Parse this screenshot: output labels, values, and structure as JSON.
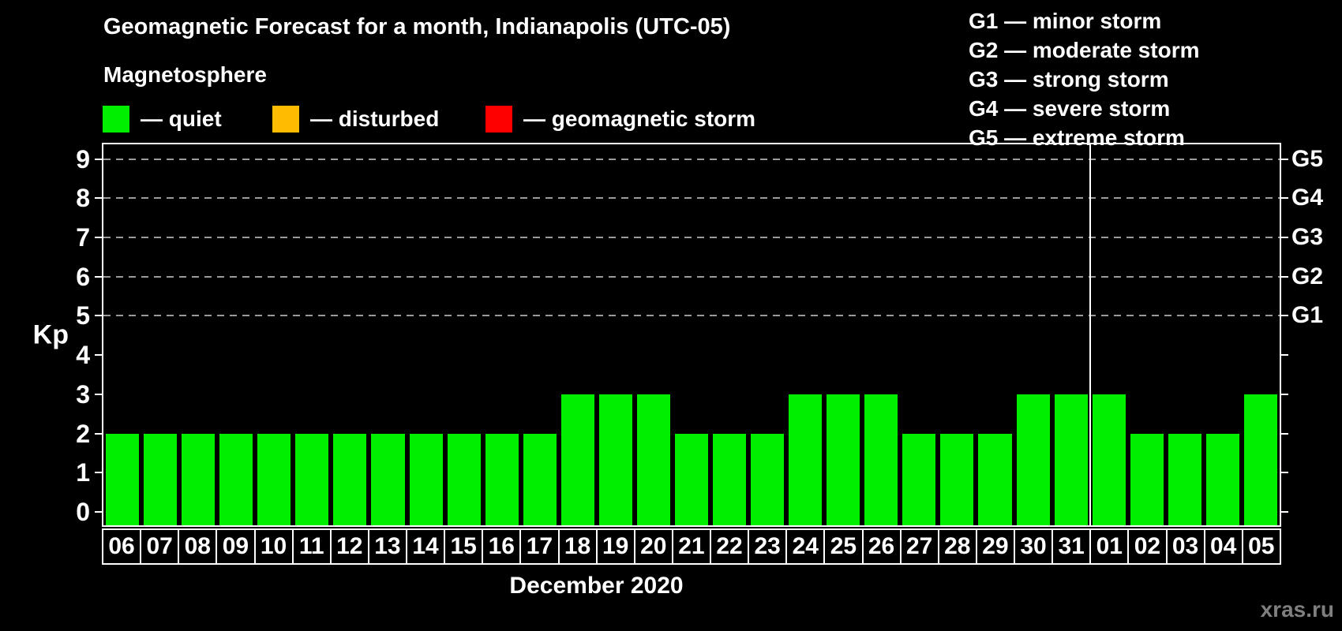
{
  "title": "Geomagnetic Forecast for a month, Indianapolis (UTC-05)",
  "legend": {
    "heading": "Magnetosphere",
    "items": [
      {
        "key": "quiet",
        "label": "— quiet",
        "color": "#00ee00"
      },
      {
        "key": "disturbed",
        "label": "— disturbed",
        "color": "#ffbc00"
      },
      {
        "key": "geomagnetic-storm",
        "label": "— geomagnetic storm",
        "color": "#ff0000"
      }
    ]
  },
  "g_scale_legend": [
    {
      "label": "G1 — minor storm"
    },
    {
      "label": "G2 — moderate storm"
    },
    {
      "label": "G3 — strong storm"
    },
    {
      "label": "G4 — severe storm"
    },
    {
      "label": "G5 — extreme storm"
    }
  ],
  "chart_data": {
    "type": "bar",
    "title": "Geomagnetic Forecast for a month, Indianapolis (UTC-05)",
    "series_name": "Kp index daily forecast",
    "categories": [
      "06",
      "07",
      "08",
      "09",
      "10",
      "11",
      "12",
      "13",
      "14",
      "15",
      "16",
      "17",
      "18",
      "19",
      "20",
      "21",
      "22",
      "23",
      "24",
      "25",
      "26",
      "27",
      "28",
      "29",
      "30",
      "31",
      "01",
      "02",
      "03",
      "04",
      "05"
    ],
    "values": [
      2,
      2,
      2,
      2,
      2,
      2,
      2,
      2,
      2,
      2,
      2,
      2,
      3,
      3,
      3,
      2,
      2,
      2,
      3,
      3,
      3,
      2,
      2,
      2,
      3,
      3,
      3,
      2,
      2,
      2,
      3
    ],
    "bar_color": "#00ee00",
    "bar_meaning": "quiet",
    "xlabel": "December 2020",
    "ylabel": "Kp",
    "ylim": [
      0,
      9
    ],
    "y_ticks": [
      0,
      1,
      2,
      3,
      4,
      5,
      6,
      7,
      8,
      9
    ],
    "gridline_kp": [
      5,
      6,
      7,
      8,
      9
    ],
    "gridline_style": "dashed gray horizontal lines at storm levels only",
    "right_axis_labels": [
      {
        "label": "G1",
        "kp": 5
      },
      {
        "label": "G2",
        "kp": 6
      },
      {
        "label": "G3",
        "kp": 7
      },
      {
        "label": "G4",
        "kp": 8
      },
      {
        "label": "G5",
        "kp": 9
      }
    ],
    "month_separator_after": 26,
    "legend_position": "top-left and top-right"
  },
  "watermark": "xras.ru"
}
